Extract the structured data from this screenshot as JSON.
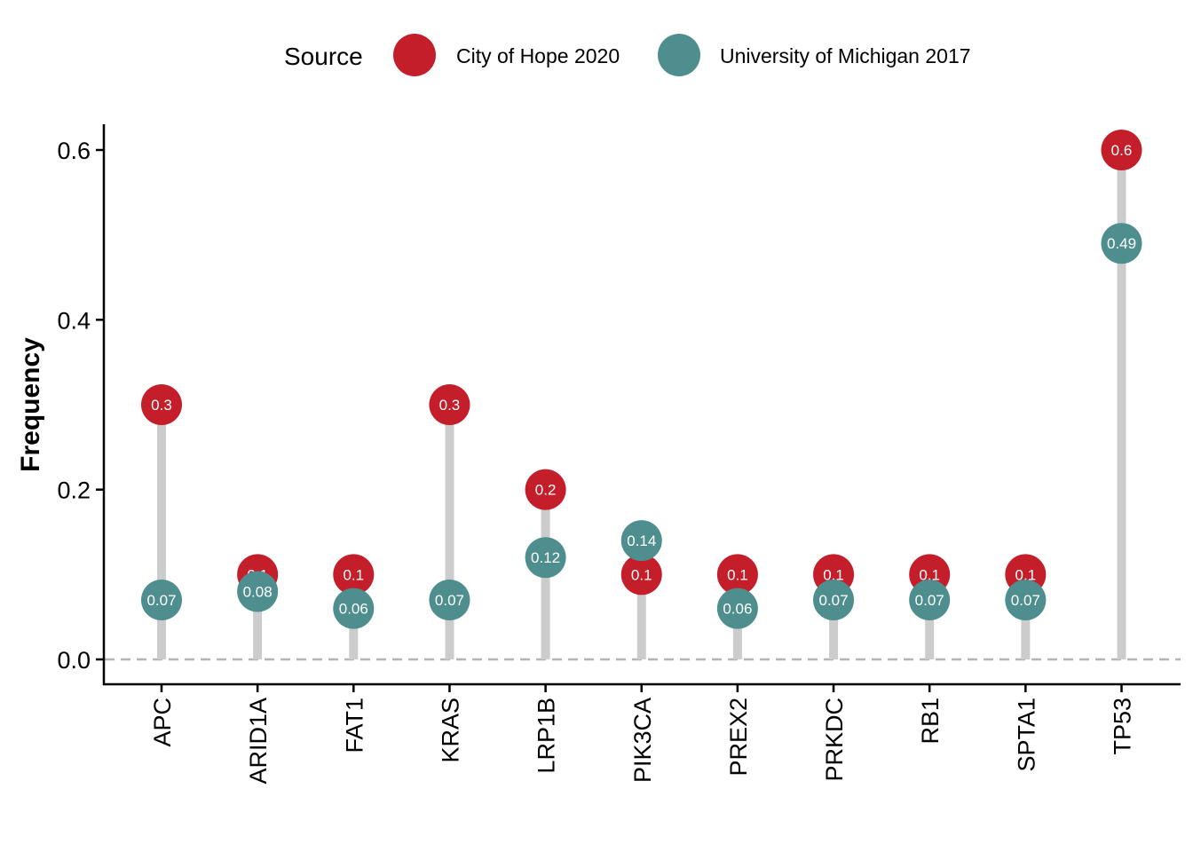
{
  "chart_data": {
    "type": "lollipop",
    "categories": [
      "APC",
      "ARID1A",
      "FAT1",
      "KRAS",
      "LRP1B",
      "PIK3CA",
      "PREX2",
      "PRKDC",
      "RB1",
      "SPTA1",
      "TP53"
    ],
    "series": [
      {
        "name": "City of Hope 2020",
        "color": "#c41e2a",
        "values": [
          0.3,
          0.1,
          0.1,
          0.3,
          0.2,
          0.1,
          0.1,
          0.1,
          0.1,
          0.1,
          0.6
        ],
        "labels": [
          "0.3",
          "0.1",
          "0.1",
          "0.3",
          "0.2",
          "0.1",
          "0.1",
          "0.1",
          "0.1",
          "0.1",
          "0.6"
        ]
      },
      {
        "name": "University of Michigan 2017",
        "color": "#4f8e8e",
        "values": [
          0.07,
          0.08,
          0.06,
          0.07,
          0.12,
          0.14,
          0.06,
          0.07,
          0.07,
          0.07,
          0.49
        ],
        "labels": [
          "0.07",
          "0.08",
          "0.06",
          "0.07",
          "0.12",
          "0.14",
          "0.06",
          "0.07",
          "0.07",
          "0.07",
          "0.49"
        ]
      }
    ],
    "legend_title": "Source",
    "legend_position": "top",
    "ylabel": "Frequency",
    "xlabel": "",
    "ylim": [
      -0.03,
      0.63
    ],
    "yticks": [
      0.0,
      0.2,
      0.4,
      0.6
    ],
    "ytick_labels": [
      "0.0",
      "0.2",
      "0.4",
      "0.6"
    ],
    "reference_line": 0.0,
    "segment_color": "#cccccc",
    "grid": false
  }
}
